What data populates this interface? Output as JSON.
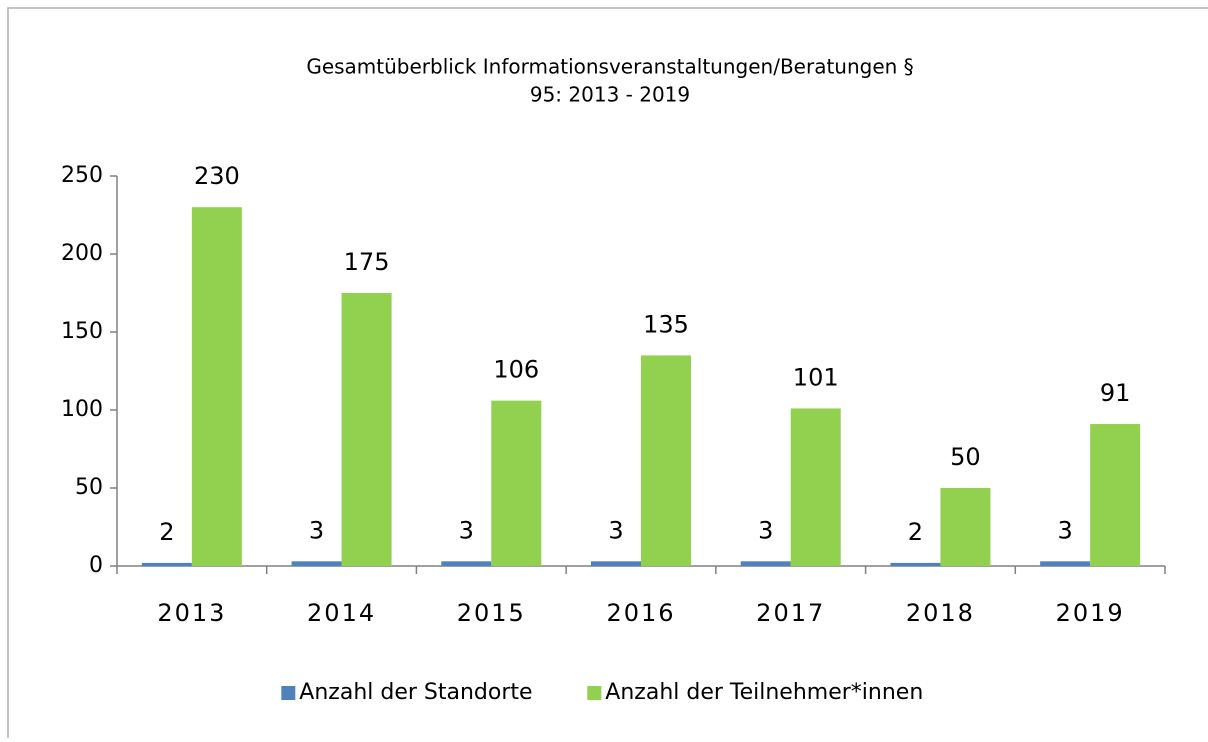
{
  "chart_data": {
    "type": "bar",
    "title": [
      "Gesamtüberblick Informationsveranstaltungen/Beratungen §",
      "95: 2013 - 2019"
    ],
    "categories": [
      "2013",
      "2014",
      "2015",
      "2016",
      "2017",
      "2018",
      "2019"
    ],
    "series": [
      {
        "name": "Anzahl der Standorte",
        "color": "#4f81bd",
        "values": [
          2,
          3,
          3,
          3,
          3,
          2,
          3
        ]
      },
      {
        "name": "Anzahl der Teilnehmer*innen",
        "color": "#92d050",
        "values": [
          230,
          175,
          106,
          135,
          101,
          50,
          91
        ]
      }
    ],
    "ylim": [
      0,
      250
    ],
    "yticks": [
      0,
      50,
      100,
      150,
      200,
      250
    ],
    "grid": false,
    "legend": "bottom"
  }
}
